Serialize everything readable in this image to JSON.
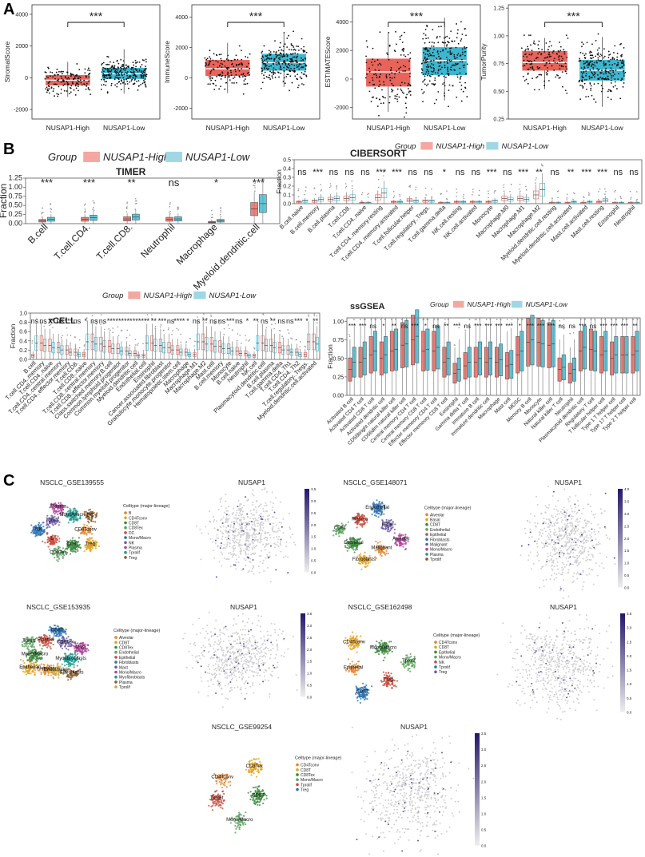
{
  "panels": {
    "A": "A",
    "B": "B",
    "C": "C"
  },
  "colors": {
    "high": "#E8635A",
    "low": "#3DB6D0",
    "high_light": "#F4A7A1",
    "low_light": "#9FD8E4"
  },
  "chart_data": [
    {
      "type": "box",
      "id": "A1",
      "ylabel": "StromalScore",
      "categories": [
        "NUSAP1-High",
        "NUSAP1-Low"
      ],
      "yticks": [
        -2000,
        0,
        2000,
        4000
      ],
      "ylim": [
        -2600,
        4600
      ],
      "boxes": [
        {
          "q1": -450,
          "median": -150,
          "q3": 150,
          "whisker_low": -1200,
          "whisker_high": 1000
        },
        {
          "q1": -50,
          "median": 250,
          "q3": 600,
          "whisker_low": -1000,
          "whisker_high": 1800
        }
      ],
      "significance": "***"
    },
    {
      "type": "box",
      "id": "A2",
      "ylabel": "ImmuneScore",
      "categories": [
        "NUSAP1-High",
        "NUSAP1-Low"
      ],
      "yticks": [
        -2000,
        0,
        2000,
        4000
      ],
      "ylim": [
        -2700,
        4800
      ],
      "boxes": [
        {
          "q1": 150,
          "median": 600,
          "q3": 1150,
          "whisker_low": -1000,
          "whisker_high": 2300
        },
        {
          "q1": 500,
          "median": 1000,
          "q3": 1550,
          "whisker_low": -600,
          "whisker_high": 2900
        }
      ],
      "significance": "***"
    },
    {
      "type": "box",
      "id": "A3",
      "ylabel": "ESTIMATEScore",
      "categories": [
        "NUSAP1-High",
        "NUSAP1-Low"
      ],
      "yticks": [
        -2000,
        0,
        2000,
        4000
      ],
      "ylim": [
        -2800,
        5200
      ],
      "boxes": [
        {
          "q1": -500,
          "median": 500,
          "q3": 1400,
          "whisker_low": -2300,
          "whisker_high": 3200
        },
        {
          "q1": 300,
          "median": 1300,
          "q3": 2200,
          "whisker_low": -1500,
          "whisker_high": 4300
        }
      ],
      "significance": "***"
    },
    {
      "type": "box",
      "id": "A4",
      "ylabel": "TumorPurity",
      "categories": [
        "NUSAP1-High",
        "NUSAP1-Low"
      ],
      "yticks": [
        0.25,
        0.5,
        0.75,
        1.0,
        1.25
      ],
      "ytick_labels": [
        "0.25",
        "0.50",
        "0.75",
        "1.00",
        "1.25"
      ],
      "ylim": [
        0.25,
        1.28
      ],
      "boxes": [
        {
          "q1": 0.69,
          "median": 0.76,
          "q3": 0.86,
          "whisker_low": 0.52,
          "whisker_high": 0.98
        },
        {
          "q1": 0.6,
          "median": 0.69,
          "q3": 0.78,
          "whisker_low": 0.36,
          "whisker_high": 0.99
        }
      ],
      "significance": "***"
    },
    {
      "type": "box",
      "id": "B_TIMER",
      "title": "TIMER",
      "legend_title": "Group",
      "legend": [
        "NUSAP1-High",
        "NUSAP1-Low"
      ],
      "ylabel": "Fraction",
      "yticks": [
        0,
        0.25,
        0.5,
        0.75,
        1.0,
        1.25
      ],
      "ytick_labels": [
        "0.00",
        "0.25",
        "0.50",
        "0.75",
        "1.00",
        "1.25"
      ],
      "ylim": [
        0,
        1.25
      ],
      "categories": [
        "B.cell",
        "T.cell.CD4.",
        "T.cell.CD8.",
        "Neutrophil",
        "Macrophage",
        "Myeloid.dendritic.cell"
      ],
      "medians_high": [
        0.08,
        0.12,
        0.13,
        0.12,
        0.04,
        0.4
      ],
      "medians_low": [
        0.12,
        0.16,
        0.18,
        0.13,
        0.08,
        0.55
      ],
      "significance": [
        "***",
        "***",
        "**",
        "ns",
        "*",
        "***"
      ]
    },
    {
      "type": "box",
      "id": "B_CIBERSORT",
      "title": "CIBERSORT",
      "legend_title": "Group",
      "legend": [
        "NUSAP1-High",
        "NUSAP1-Low"
      ],
      "ylabel": "Fraction",
      "yticks": [
        0,
        0.1,
        0.2,
        0.3,
        0.4,
        0.5
      ],
      "ytick_labels": [
        "0.0",
        "0.1",
        "0.2",
        "0.3",
        "0.4",
        "0.5"
      ],
      "ylim": [
        0,
        0.5
      ],
      "categories": [
        "B.cell.naive",
        "B.cell.memory",
        "B.cell.plasma",
        "T.cell.CD8.",
        "T.cell.CD4..naive",
        "T.cell.CD4..memory.resting",
        "T.cell.CD4..memory.activated",
        "T.cell.follicular.helper",
        "T.cell.regulatory..Tregs.",
        "T.cell.gamma.delta",
        "NK.cell.resting",
        "NK.cell.activated",
        "Monocyte",
        "Macrophage.M0",
        "Macrophage.M1",
        "Macrophage.M2",
        "Myeloid.dendritic.cell.resting",
        "Myeloid.dendritic.cell.activated",
        "Mast.cell.activated",
        "Mast.cell.resting",
        "Eosinophil",
        "Neutrophil"
      ],
      "medians_high": [
        0.02,
        0.03,
        0.05,
        0.06,
        0.01,
        0.07,
        0.02,
        0.04,
        0.03,
        0.01,
        0.02,
        0.02,
        0.02,
        0.06,
        0.06,
        0.1,
        0.01,
        0.01,
        0.01,
        0.02,
        0.01,
        0.01
      ],
      "medians_low": [
        0.03,
        0.05,
        0.06,
        0.07,
        0.01,
        0.12,
        0.02,
        0.03,
        0.03,
        0.01,
        0.02,
        0.02,
        0.03,
        0.05,
        0.05,
        0.16,
        0.01,
        0.02,
        0.02,
        0.04,
        0.01,
        0.01
      ],
      "significance": [
        "ns",
        "***",
        "ns",
        "ns",
        "ns",
        "***",
        "***",
        "ns",
        "ns",
        "*",
        "ns",
        "ns",
        "***",
        "ns",
        "***",
        "**",
        "ns",
        "**",
        "***",
        "***",
        "ns",
        "ns"
      ]
    },
    {
      "type": "box",
      "id": "B_xCELL",
      "title": "xCELL",
      "legend_title": "Group",
      "legend": [
        "NUSAP1-High",
        "NUSAP1-Low"
      ],
      "ylabel": "Fraction",
      "yticks": [
        0,
        0.2,
        0.4,
        0.6,
        0.8,
        1.0
      ],
      "ytick_labels": [
        "0.0",
        "0.2",
        "0.4",
        "0.6",
        "0.8",
        "1.0"
      ],
      "ylim": [
        0,
        1.0
      ],
      "categories": [
        "B.cell",
        "T.cell.CD4..memory",
        "T.cell.CD4..naive",
        "T.cell.CD4..central.memory",
        "T.cell.CD4..effector.memory",
        "T.cell.CD8.",
        "T.cell.CD8..naive",
        "T.cell.CD8..central.memory",
        "T.cell.CD8..effector.memory",
        "Class.switched.memory.B.cell",
        "Common.lymphoid.progenitor",
        "Common.myeloid.progenitor",
        "Myeloid.dendritic.cell",
        "Endothelial.cell",
        "Eosinophil",
        "Cancer.associated.fibroblast",
        "Granulocyte.monocyte.progenitor",
        "Hematopoietic.stem.cell",
        "Macrophage",
        "Macrophage.M1",
        "Macrophage.M2",
        "Mast.cell",
        "B.cell.memory",
        "Monocyte",
        "B.cell.naive",
        "Neutrophil",
        "NK.cell",
        "Plasmacytoid.dendritic.cell",
        "B.cell.plasma",
        "T.cell.gamma.delta",
        "T.cell.CD4..Th1",
        "T.cell.CD4..Th2",
        "T.cell.regulatory..Tregs.",
        "Myeloid.dendritic.cell.activated"
      ],
      "significance": [
        "ns",
        "ns",
        "**",
        "ns",
        "***",
        "ns",
        "*",
        "ns",
        "ns",
        "***",
        "***",
        "***",
        "***",
        "***",
        "**",
        "***",
        "ns",
        "****",
        "*",
        "ns",
        "**",
        "ns",
        "ns",
        "***",
        "ns",
        "*",
        "**",
        "ns",
        "**",
        "ns",
        "ns",
        "***",
        "*",
        "**"
      ]
    },
    {
      "type": "box",
      "id": "B_ssGSEA",
      "title": "ssGSEA",
      "legend_title": "Group",
      "legend": [
        "NUSAP1-High",
        "NUSAP1-Low"
      ],
      "ylabel": "Fraction",
      "yticks": [
        0,
        0.25,
        0.5,
        0.75,
        1.0
      ],
      "ytick_labels": [
        "0.00",
        "0.25",
        "0.50",
        "0.75",
        "1.00"
      ],
      "ylim": [
        0,
        1.05
      ],
      "categories": [
        "Activated B cell",
        "Activated CD4 T cell",
        "Activated CD8 T cell",
        "Activated dendritic cell",
        "CD56bright natural killer cell",
        "CD56dim natural killer cell",
        "Central memory CD4 T cell",
        "Central memory CD8 T cell",
        "Effector memeory CD4 T cell",
        "Effector memeory CD8 T cell",
        "Eosinophil",
        "Gamma delta T cell",
        "Immature B cell",
        "Immature dendritic cell",
        "Macrophage",
        "Mast cell",
        "MDSC",
        "Memory B cell",
        "Monocyte",
        "Natural killer cell",
        "Natural killer T cell",
        "Neutrophil",
        "Plasmacytoid dendritic cell",
        "Regulatory T cell",
        "T follicular helper cell",
        "Type 1 T helper cell",
        "Type 17 T helper cell",
        "Type 2 T helper cell"
      ],
      "medians_high": [
        0.35,
        0.45,
        0.55,
        0.5,
        0.6,
        0.68,
        0.75,
        0.6,
        0.6,
        0.45,
        0.3,
        0.4,
        0.45,
        0.45,
        0.45,
        0.4,
        0.55,
        0.72,
        0.72,
        0.68,
        0.35,
        0.3,
        0.6,
        0.62,
        0.55,
        0.5,
        0.55,
        0.55
      ],
      "medians_low": [
        0.45,
        0.5,
        0.6,
        0.55,
        0.62,
        0.7,
        0.8,
        0.62,
        0.65,
        0.5,
        0.35,
        0.45,
        0.5,
        0.5,
        0.48,
        0.42,
        0.6,
        0.75,
        0.7,
        0.7,
        0.38,
        0.35,
        0.65,
        0.6,
        0.6,
        0.55,
        0.55,
        0.6
      ],
      "significance": [
        "***",
        "***",
        "ns",
        "*",
        "**",
        "ns",
        "***",
        "*",
        "ns",
        "**",
        "***",
        "ns",
        "***",
        "***",
        "***",
        "***",
        "*",
        "***",
        "***",
        "***",
        "ns",
        "ns",
        "***",
        "ns",
        "***",
        "***",
        "***",
        "**"
      ]
    }
  ],
  "umaps": [
    {
      "title": "NSCLC_GSE139555",
      "legend_title": "Celltype (major-lineage)",
      "legend": [
        "B",
        "CD4Tconv",
        "CD8T",
        "CD8Tex",
        "DC",
        "Mono/Macro",
        "NK",
        "Plasma",
        "Tprolif",
        "Treg"
      ],
      "labels": [
        "CD4Tconv",
        "Treg",
        "CD8T",
        "CD8Tex",
        "B",
        "NK",
        "Tprolif",
        "Plasma",
        "Mono/Macro",
        "DC"
      ]
    },
    {
      "title": "NSCLC_GSE148071",
      "legend_title": "Celltype (major-lineage)",
      "legend": [
        "Alveolar",
        "Basal",
        "CD8T",
        "Endothelial",
        "Epithelial",
        "Fibroblasts",
        "Malignant",
        "Mono/Macro",
        "Plasma",
        "Tprolif"
      ],
      "labels": [
        "Malignant",
        "Fibroblasts",
        "Epithelial",
        "CD8T",
        "Plasma",
        "Endothelial",
        "Basal",
        "Alveolar"
      ]
    },
    {
      "title": "NSCLC_GSE153935",
      "legend_title": "Celltype (major-lineage)",
      "legend": [
        "Alveolar",
        "CD8T",
        "CD8Tex",
        "Endothelial",
        "Epithelial",
        "Fibroblasts",
        "Mast",
        "Mono/Macro",
        "Myofibroblasts",
        "Plasma",
        "Tprolif"
      ],
      "labels": [
        "Alveolar",
        "Epithelial",
        "Mono/Macro",
        "Tprolif",
        "Plasma",
        "CD8T",
        "CD8Tex",
        "Mast",
        "Myofibroblasts",
        "Fibroblasts",
        "Endothelial"
      ]
    },
    {
      "title": "NSCLC_GSE162498",
      "legend_title": "Celltype (major-lineage)",
      "legend": [
        "CD4Tconv",
        "CD8T",
        "Epithelial",
        "Mono/Macro",
        "NK",
        "Tprolif",
        "Treg"
      ],
      "labels": [
        "Epithelial",
        "CD4Tconv",
        "Mono/Macro",
        "Tprolif",
        "Treg",
        "CD8T"
      ]
    },
    {
      "title": "NSCLC_GSE99254",
      "legend_title": "Celltype (major-lineage)",
      "legend": [
        "CD4Tconv",
        "CD8T",
        "CD8Tex",
        "Mono/Macro",
        "Tprolif",
        "Treg"
      ],
      "labels": [
        "CD4Tconv",
        "CD8Tex",
        "CD8T",
        "Mono/Macro",
        "Tprolif"
      ]
    }
  ],
  "nusap1": [
    {
      "title": "NUSAP1",
      "scale": [
        "0.0",
        "0.5",
        "1.0",
        "1.5",
        "2.0",
        "2.5",
        "3.0",
        "3.5"
      ]
    },
    {
      "title": "NUSAP1",
      "scale": [
        "0.0",
        "0.5",
        "1.0",
        "1.5",
        "2.0",
        "2.5",
        "3.0",
        "3.5",
        "4.0"
      ]
    },
    {
      "title": "NUSAP1",
      "scale": [
        "0.0",
        "0.5",
        "1.0",
        "1.5",
        "2.0",
        "2.5",
        "3.0",
        "3.5"
      ]
    },
    {
      "title": "NUSAP1",
      "scale": [
        "0.0",
        "0.5",
        "1.0",
        "1.5",
        "2.0",
        "2.5",
        "3.0",
        "3.5"
      ]
    },
    {
      "title": "NUSAP1",
      "scale": [
        "0.0",
        "0.5",
        "1.0",
        "1.5",
        "2.0",
        "2.5",
        "3.0",
        "3.5"
      ]
    }
  ]
}
